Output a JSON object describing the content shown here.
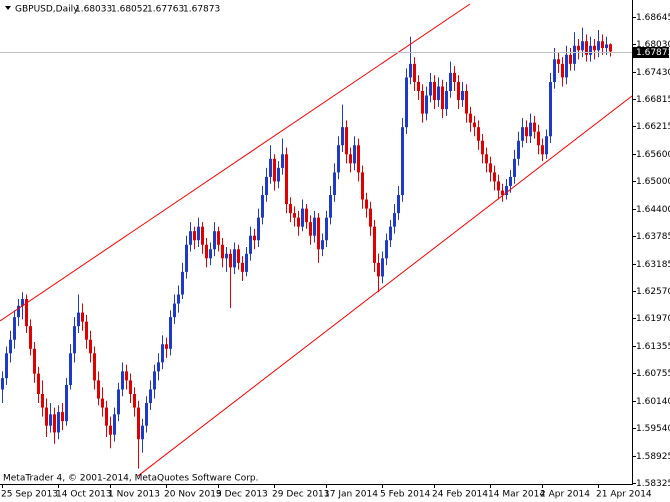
{
  "chart_data": {
    "type": "candlestick",
    "title": "GBPUSD,Daily",
    "footer": "MetaTrader 4, © 2001-2014, MetaQuotes Software Corp.",
    "up_color": "#1f3ac8",
    "down_color": "#e00000",
    "ylim": [
      1.5831,
      1.6899
    ],
    "yticks": [
      1.68645,
      {
        "value": 1.6803,
        "label": "1.68030"
      },
      {
        "value": 1.6743,
        "label": "1.67430"
      },
      1.66815,
      1.66215,
      {
        "value": 1.656,
        "label": "1.65600"
      },
      {
        "value": 1.65,
        "label": "1.65000"
      },
      {
        "value": 1.644,
        "label": "1.64400"
      },
      1.63785,
      1.63185,
      {
        "value": 1.6257,
        "label": "1.62570"
      },
      {
        "value": 1.6197,
        "label": "1.61970"
      },
      1.61355,
      1.60755,
      {
        "value": 1.6014,
        "label": "1.60140"
      },
      {
        "value": 1.5954,
        "label": "1.59540"
      },
      1.58925,
      1.58325
    ],
    "categories": [
      "25 Sep 2013",
      null,
      null,
      null,
      null,
      null,
      null,
      null,
      null,
      null,
      null,
      null,
      null,
      null,
      "14 Oct 2013",
      null,
      null,
      null,
      null,
      null,
      null,
      null,
      null,
      null,
      null,
      null,
      null,
      "1 Nov 2013",
      null,
      null,
      null,
      null,
      null,
      null,
      null,
      null,
      null,
      null,
      null,
      null,
      null,
      "20 Nov 2013",
      null,
      null,
      null,
      null,
      null,
      null,
      null,
      null,
      null,
      null,
      null,
      null,
      "9 Dec 2013",
      null,
      null,
      null,
      null,
      null,
      null,
      null,
      null,
      null,
      null,
      null,
      null,
      null,
      "29 Dec 2013",
      null,
      null,
      null,
      null,
      null,
      null,
      null,
      null,
      null,
      null,
      null,
      null,
      "17 Jan 2014",
      null,
      null,
      null,
      null,
      null,
      null,
      null,
      null,
      null,
      null,
      null,
      null,
      null,
      "5 Feb 2014",
      null,
      null,
      null,
      null,
      null,
      null,
      null,
      null,
      null,
      null,
      null,
      null,
      "24 Feb 2014",
      null,
      null,
      null,
      null,
      null,
      null,
      null,
      null,
      null,
      null,
      null,
      null,
      null,
      "14 Mar 2014",
      null,
      null,
      null,
      null,
      null,
      null,
      null,
      null,
      null,
      null,
      null,
      null,
      "2 Apr 2014",
      null,
      null,
      null,
      null,
      null,
      null,
      null,
      null,
      null,
      null,
      null,
      null,
      null,
      "21 Apr 2014",
      null,
      null,
      null
    ],
    "ohlc": [
      [
        1.604,
        1.608,
        1.601,
        1.6065
      ],
      [
        1.6065,
        1.6135,
        1.605,
        1.612
      ],
      [
        1.612,
        1.617,
        1.61,
        1.615
      ],
      [
        1.615,
        1.6215,
        1.613,
        1.62
      ],
      [
        1.62,
        1.624,
        1.618,
        1.6225
      ],
      [
        1.6225,
        1.6255,
        1.6195,
        1.624
      ],
      [
        1.624,
        1.625,
        1.6165,
        1.618
      ],
      [
        1.618,
        1.6195,
        1.6115,
        1.613
      ],
      [
        1.613,
        1.6145,
        1.6055,
        1.6075
      ],
      [
        1.6075,
        1.609,
        1.601,
        1.603
      ],
      [
        1.603,
        1.606,
        1.598,
        1.6
      ],
      [
        1.6,
        1.602,
        1.5935,
        1.596
      ],
      [
        1.596,
        1.601,
        1.5945,
        1.5985
      ],
      [
        1.5985,
        1.6,
        1.592,
        1.5945
      ],
      [
        1.5945,
        1.6005,
        1.593,
        1.599
      ],
      [
        1.599,
        1.601,
        1.595,
        1.597
      ],
      [
        1.597,
        1.6065,
        1.596,
        1.605
      ],
      [
        1.605,
        1.614,
        1.604,
        1.612
      ],
      [
        1.612,
        1.62,
        1.61,
        1.618
      ],
      [
        1.618,
        1.625,
        1.6165,
        1.621
      ],
      [
        1.621,
        1.623,
        1.617,
        1.619
      ],
      [
        1.619,
        1.6205,
        1.613,
        1.615
      ],
      [
        1.615,
        1.617,
        1.61,
        1.612
      ],
      [
        1.612,
        1.6135,
        1.604,
        1.606
      ],
      [
        1.606,
        1.608,
        1.6005,
        1.602
      ],
      [
        1.602,
        1.6045,
        1.598,
        1.6
      ],
      [
        1.6,
        1.6015,
        1.5935,
        1.596
      ],
      [
        1.596,
        1.598,
        1.591,
        1.594
      ],
      [
        1.594,
        1.6,
        1.5925,
        1.5985
      ],
      [
        1.5985,
        1.6055,
        1.597,
        1.604
      ],
      [
        1.604,
        1.61,
        1.6025,
        1.608
      ],
      [
        1.608,
        1.6095,
        1.604,
        1.606
      ],
      [
        1.606,
        1.6075,
        1.601,
        1.603
      ],
      [
        1.603,
        1.6045,
        1.598,
        1.6
      ],
      [
        1.6,
        1.6015,
        1.5865,
        1.593
      ],
      [
        1.593,
        1.5975,
        1.59,
        1.596
      ],
      [
        1.596,
        1.6025,
        1.5945,
        1.601
      ],
      [
        1.601,
        1.606,
        1.5995,
        1.604
      ],
      [
        1.604,
        1.6095,
        1.602,
        1.608
      ],
      [
        1.608,
        1.612,
        1.606,
        1.61
      ],
      [
        1.61,
        1.616,
        1.6085,
        1.614
      ],
      [
        1.614,
        1.6155,
        1.611,
        1.613
      ],
      [
        1.613,
        1.6215,
        1.6115,
        1.62
      ],
      [
        1.62,
        1.625,
        1.6185,
        1.623
      ],
      [
        1.623,
        1.627,
        1.621,
        1.625
      ],
      [
        1.625,
        1.632,
        1.624,
        1.63
      ],
      [
        1.63,
        1.638,
        1.6285,
        1.636
      ],
      [
        1.636,
        1.641,
        1.6345,
        1.639
      ],
      [
        1.639,
        1.64,
        1.635,
        1.637
      ],
      [
        1.637,
        1.642,
        1.6355,
        1.64
      ],
      [
        1.64,
        1.641,
        1.634,
        1.636
      ],
      [
        1.636,
        1.6375,
        1.631,
        1.633
      ],
      [
        1.633,
        1.6365,
        1.6315,
        1.635
      ],
      [
        1.635,
        1.641,
        1.6335,
        1.639
      ],
      [
        1.639,
        1.64,
        1.6345,
        1.636
      ],
      [
        1.636,
        1.6375,
        1.631,
        1.633
      ],
      [
        1.633,
        1.6355,
        1.63,
        1.634
      ],
      [
        1.634,
        1.635,
        1.622,
        1.631
      ],
      [
        1.631,
        1.6365,
        1.6295,
        1.635
      ],
      [
        1.635,
        1.636,
        1.6305,
        1.632
      ],
      [
        1.632,
        1.6335,
        1.628,
        1.63
      ],
      [
        1.63,
        1.6355,
        1.629,
        1.634
      ],
      [
        1.634,
        1.64,
        1.6325,
        1.638
      ],
      [
        1.638,
        1.6395,
        1.635,
        1.637
      ],
      [
        1.637,
        1.644,
        1.6355,
        1.642
      ],
      [
        1.642,
        1.649,
        1.6405,
        1.647
      ],
      [
        1.647,
        1.653,
        1.6455,
        1.651
      ],
      [
        1.651,
        1.658,
        1.6495,
        1.655
      ],
      [
        1.655,
        1.656,
        1.648,
        1.65
      ],
      [
        1.65,
        1.6545,
        1.6485,
        1.653
      ],
      [
        1.653,
        1.6595,
        1.6515,
        1.656
      ],
      [
        1.656,
        1.6575,
        1.643,
        1.645
      ],
      [
        1.645,
        1.6465,
        1.641,
        1.643
      ],
      [
        1.643,
        1.6445,
        1.64,
        1.642
      ],
      [
        1.642,
        1.6435,
        1.638,
        1.64
      ],
      [
        1.64,
        1.646,
        1.639,
        1.644
      ],
      [
        1.644,
        1.645,
        1.6395,
        1.641
      ],
      [
        1.641,
        1.6425,
        1.636,
        1.638
      ],
      [
        1.638,
        1.6435,
        1.6365,
        1.642
      ],
      [
        1.642,
        1.643,
        1.632,
        1.635
      ],
      [
        1.635,
        1.6385,
        1.6335,
        1.637
      ],
      [
        1.637,
        1.6435,
        1.6355,
        1.642
      ],
      [
        1.642,
        1.649,
        1.6405,
        1.647
      ],
      [
        1.647,
        1.654,
        1.6455,
        1.652
      ],
      [
        1.652,
        1.66,
        1.6505,
        1.658
      ],
      [
        1.658,
        1.667,
        1.6565,
        1.662
      ],
      [
        1.662,
        1.6635,
        1.654,
        1.656
      ],
      [
        1.656,
        1.6575,
        1.652,
        1.654
      ],
      [
        1.654,
        1.66,
        1.6525,
        1.658
      ],
      [
        1.658,
        1.6595,
        1.65,
        1.652
      ],
      [
        1.652,
        1.6535,
        1.644,
        1.646
      ],
      [
        1.646,
        1.6475,
        1.642,
        1.644
      ],
      [
        1.644,
        1.6455,
        1.638,
        1.64
      ],
      [
        1.64,
        1.6415,
        1.63,
        1.632
      ],
      [
        1.632,
        1.634,
        1.6255,
        1.629
      ],
      [
        1.629,
        1.6345,
        1.6275,
        1.633
      ],
      [
        1.633,
        1.6385,
        1.6315,
        1.637
      ],
      [
        1.637,
        1.6415,
        1.6355,
        1.64
      ],
      [
        1.64,
        1.645,
        1.6385,
        1.643
      ],
      [
        1.643,
        1.649,
        1.6415,
        1.647
      ],
      [
        1.647,
        1.664,
        1.6455,
        1.662
      ],
      [
        1.662,
        1.675,
        1.6605,
        1.673
      ],
      [
        1.673,
        1.682,
        1.6715,
        1.676
      ],
      [
        1.676,
        1.6775,
        1.67,
        1.672
      ],
      [
        1.672,
        1.6735,
        1.668,
        1.67
      ],
      [
        1.67,
        1.6715,
        1.663,
        1.665
      ],
      [
        1.665,
        1.671,
        1.6635,
        1.669
      ],
      [
        1.669,
        1.674,
        1.6675,
        1.672
      ],
      [
        1.672,
        1.6735,
        1.666,
        1.668
      ],
      [
        1.668,
        1.673,
        1.6665,
        1.671
      ],
      [
        1.671,
        1.6725,
        1.664,
        1.666
      ],
      [
        1.666,
        1.672,
        1.6645,
        1.67
      ],
      [
        1.67,
        1.6765,
        1.6685,
        1.674
      ],
      [
        1.674,
        1.6755,
        1.67,
        1.672
      ],
      [
        1.672,
        1.6735,
        1.666,
        1.668
      ],
      [
        1.668,
        1.672,
        1.6665,
        1.67
      ],
      [
        1.67,
        1.6715,
        1.663,
        1.665
      ],
      [
        1.665,
        1.6665,
        1.661,
        1.663
      ],
      [
        1.663,
        1.6645,
        1.66,
        1.662
      ],
      [
        1.662,
        1.6635,
        1.657,
        1.659
      ],
      [
        1.659,
        1.6605,
        1.654,
        1.656
      ],
      [
        1.656,
        1.6575,
        1.652,
        1.654
      ],
      [
        1.654,
        1.6555,
        1.65,
        1.652
      ],
      [
        1.652,
        1.6535,
        1.648,
        1.65
      ],
      [
        1.65,
        1.6515,
        1.646,
        1.648
      ],
      [
        1.648,
        1.6495,
        1.6455,
        1.647
      ],
      [
        1.647,
        1.6505,
        1.646,
        1.649
      ],
      [
        1.649,
        1.6525,
        1.6475,
        1.651
      ],
      [
        1.651,
        1.657,
        1.6495,
        1.655
      ],
      [
        1.655,
        1.661,
        1.6535,
        1.659
      ],
      [
        1.659,
        1.664,
        1.6575,
        1.662
      ],
      [
        1.662,
        1.6635,
        1.6585,
        1.66
      ],
      [
        1.66,
        1.665,
        1.6585,
        1.663
      ],
      [
        1.663,
        1.6645,
        1.6595,
        1.661
      ],
      [
        1.661,
        1.6625,
        1.656,
        1.658
      ],
      [
        1.658,
        1.6595,
        1.6545,
        1.656
      ],
      [
        1.656,
        1.6615,
        1.655,
        1.66
      ],
      [
        1.66,
        1.674,
        1.6585,
        1.672
      ],
      [
        1.672,
        1.6795,
        1.6705,
        1.677
      ],
      [
        1.677,
        1.6785,
        1.674,
        1.676
      ],
      [
        1.676,
        1.6775,
        1.671,
        1.673
      ],
      [
        1.673,
        1.68,
        1.6715,
        1.678
      ],
      [
        1.678,
        1.6795,
        1.6745,
        1.676
      ],
      [
        1.676,
        1.683,
        1.6745,
        1.68
      ],
      [
        1.68,
        1.6815,
        1.677,
        1.679
      ],
      [
        1.679,
        1.684,
        1.6775,
        1.681
      ],
      [
        1.681,
        1.6825,
        1.6765,
        1.678
      ],
      [
        1.678,
        1.682,
        1.6765,
        1.68
      ],
      [
        1.68,
        1.6815,
        1.677,
        1.679
      ],
      [
        1.679,
        1.6835,
        1.6775,
        1.681
      ],
      [
        1.681,
        1.6825,
        1.678,
        1.6795
      ],
      [
        1.6795,
        1.682,
        1.678,
        1.6803
      ],
      [
        1.68033,
        1.68052,
        1.67763,
        1.67873
      ]
    ],
    "trendlines": [
      {
        "color": "#ff0000",
        "x": [
          -0.5,
          117
        ],
        "y": [
          1.61915,
          1.68924
        ]
      },
      {
        "color": "#ff0000",
        "x": [
          34,
          157.5
        ],
        "y": [
          1.58488,
          1.6689
        ]
      }
    ]
  }
}
